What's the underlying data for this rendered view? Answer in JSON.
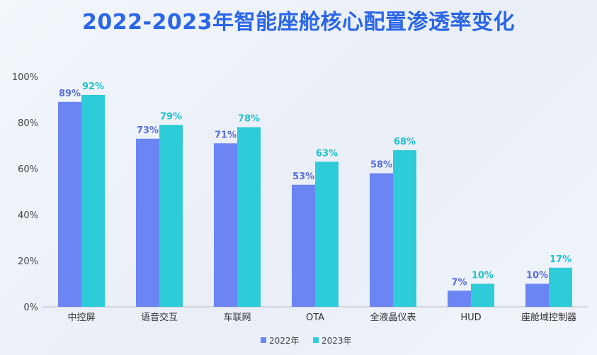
{
  "chart_data": {
    "type": "bar",
    "title": "2022-2023年智能座舱核心配置渗透率变化",
    "categories": [
      "中控屏",
      "语音交互",
      "车联网",
      "OTA",
      "全液晶仪表",
      "HUD",
      "座舱域控制器"
    ],
    "series": [
      {
        "name": "2022年",
        "values": [
          89,
          73,
          71,
          53,
          58,
          7,
          10
        ],
        "color": "#6b85f2",
        "label_color": "#5a6fd8"
      },
      {
        "name": "2023年",
        "values": [
          92,
          79,
          78,
          63,
          68,
          10,
          17
        ],
        "color": "#2ecbd8",
        "label_color": "#1ec3cf"
      }
    ],
    "ylim": [
      0,
      100
    ],
    "yticks": [
      "0%",
      "20%",
      "40%",
      "60%",
      "80%",
      "100%"
    ],
    "value_suffix": "%",
    "legend_position": "bottom-center",
    "grid": false
  }
}
